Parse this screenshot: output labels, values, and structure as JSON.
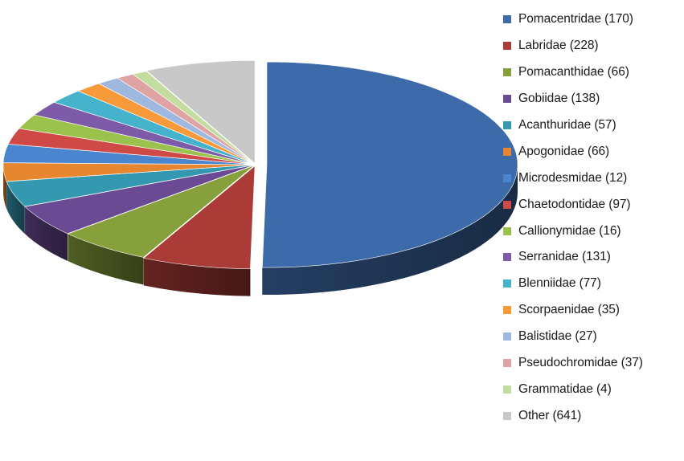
{
  "chart_data": {
    "type": "pie",
    "title": "",
    "legend_position": "right",
    "style": "3d-exploded",
    "categories": [
      "Pomacentridae (170)",
      "Labridae (228)",
      "Pomacanthidae (66)",
      "Gobiidae (138)",
      "Acanthuridae (57)",
      "Apogonidae (66)",
      "Microdesmidae (12)",
      "Chaetodontidae (97)",
      "Callionymidae (16)",
      "Serranidae (131)",
      "Blenniidae (77)",
      "Scorpaenidae (35)",
      "Balistidae (27)",
      "Pseudochromidae (37)",
      "Grammatidae (4)",
      "Other (641)"
    ],
    "values": [
      52.3,
      7.3,
      6.3,
      5.2,
      4.2,
      3.0,
      3.0,
      2.6,
      2.4,
      2.4,
      2.4,
      1.8,
      1.5,
      1.2,
      1.0,
      7.4
    ],
    "colors": [
      "#3d6aa8",
      "#ab3b37",
      "#86a03c",
      "#6a4a93",
      "#3598b1",
      "#e6862e",
      "#4a86cf",
      "#cf4a47",
      "#9bc24c",
      "#7e5ba8",
      "#44b3cb",
      "#f99a3a",
      "#9fb8e0",
      "#e0a3a3",
      "#c3dca0",
      "#c8c8c8"
    ]
  }
}
